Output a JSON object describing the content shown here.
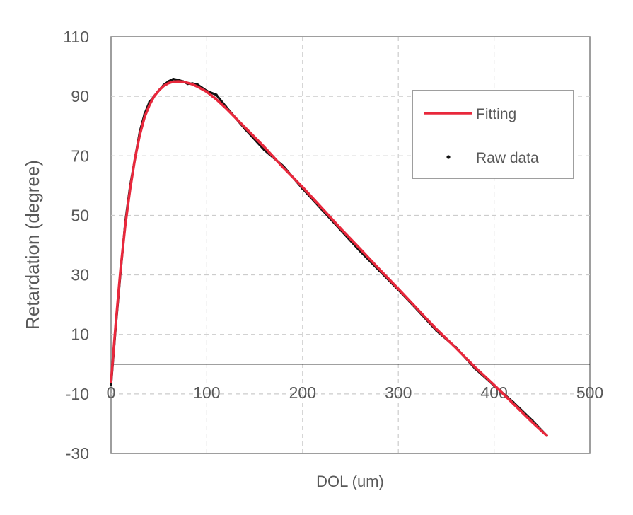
{
  "chart_data": {
    "type": "line",
    "title": "",
    "xlabel": "DOL (um)",
    "ylabel": "Retardation (degree)",
    "xlim": [
      0,
      500
    ],
    "ylim": [
      -30,
      110
    ],
    "x_ticks": [
      "0",
      "100",
      "200",
      "300",
      "400",
      "500"
    ],
    "y_ticks": [
      "110",
      "90",
      "70",
      "50",
      "30",
      "10",
      "-10",
      "-30"
    ],
    "x_axis_crosses_at_y": 0,
    "grid": true,
    "legend_position": "top-right",
    "legend": [
      "Fitting",
      "Raw data"
    ],
    "colors": {
      "fitting": "#e8283c",
      "raw": "#111111",
      "grid": "#cccccc",
      "axis": "#000000",
      "text": "#595959"
    },
    "series": [
      {
        "name": "Fitting",
        "style": "line",
        "x": [
          0,
          5,
          10,
          15,
          20,
          25,
          30,
          35,
          40,
          45,
          50,
          55,
          60,
          65,
          70,
          75,
          80,
          85,
          90,
          100,
          110,
          120,
          140,
          160,
          180,
          200,
          220,
          240,
          260,
          280,
          300,
          320,
          340,
          360,
          380,
          400,
          420,
          440,
          455
        ],
        "y": [
          -6,
          14,
          32,
          47,
          59,
          69,
          77,
          83,
          87,
          90,
          92,
          93.5,
          94.4,
          94.9,
          95,
          94.9,
          94.5,
          94,
          93.3,
          91.5,
          89,
          86,
          79.5,
          73,
          66,
          59.5,
          52.5,
          45.5,
          38.8,
          32,
          25.3,
          18.5,
          11.7,
          5.5,
          -1,
          -7,
          -13.3,
          -19.6,
          -24
        ]
      },
      {
        "name": "Raw data",
        "style": "points",
        "x": [
          0,
          5,
          10,
          15,
          20,
          25,
          30,
          35,
          40,
          45,
          50,
          55,
          60,
          65,
          70,
          75,
          80,
          85,
          90,
          100,
          110,
          120,
          140,
          160,
          180,
          200,
          220,
          240,
          260,
          280,
          300,
          320,
          340,
          360,
          380,
          400,
          420,
          440,
          455
        ],
        "y": [
          -7,
          13,
          31,
          48,
          60,
          69,
          78,
          84,
          88,
          90,
          92,
          93.8,
          95,
          95.8,
          95.5,
          95,
          94.2,
          94.3,
          94,
          91.8,
          90.5,
          86.5,
          79,
          72,
          66.5,
          59,
          52,
          45,
          38,
          31.5,
          25,
          18.2,
          11.2,
          5.7,
          -1.4,
          -7.2,
          -12.8,
          -19,
          -24
        ]
      }
    ]
  }
}
